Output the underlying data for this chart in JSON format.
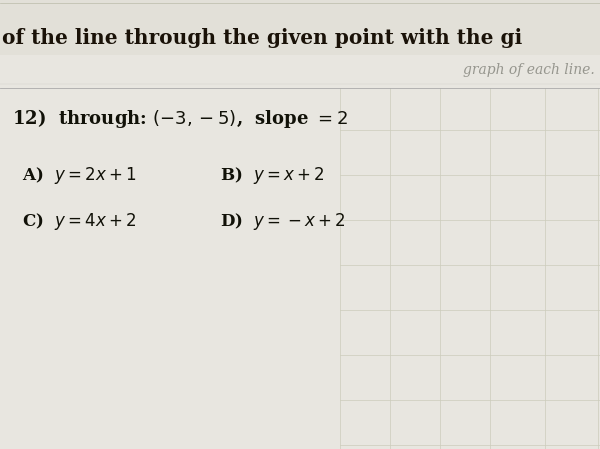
{
  "bg_color": "#e8e6e0",
  "paper_color": "#f5f4f0",
  "header_text": "of the line through the given point with the gi",
  "header_text_color": "#1a1208",
  "header_font_size": 14.5,
  "subheader_text": "graph of each line.",
  "subheader_color": "#888880",
  "subheader_font_size": 10,
  "question_text": "12)  through: $(-3, -5)$,  slope $= 2$",
  "question_font_size": 13,
  "option_A": "A)  $y = 2x + 1$",
  "option_B": "B)  $y = x + 2$",
  "option_C": "C)  $y = 4x + 2$",
  "option_D": "D)  $y = -x + 2$",
  "option_font_size": 12,
  "divider_color": "#aaaaaa",
  "grid_color": "#ccccbb",
  "text_color": "#111108",
  "header_line_color": "#bbbbaa"
}
